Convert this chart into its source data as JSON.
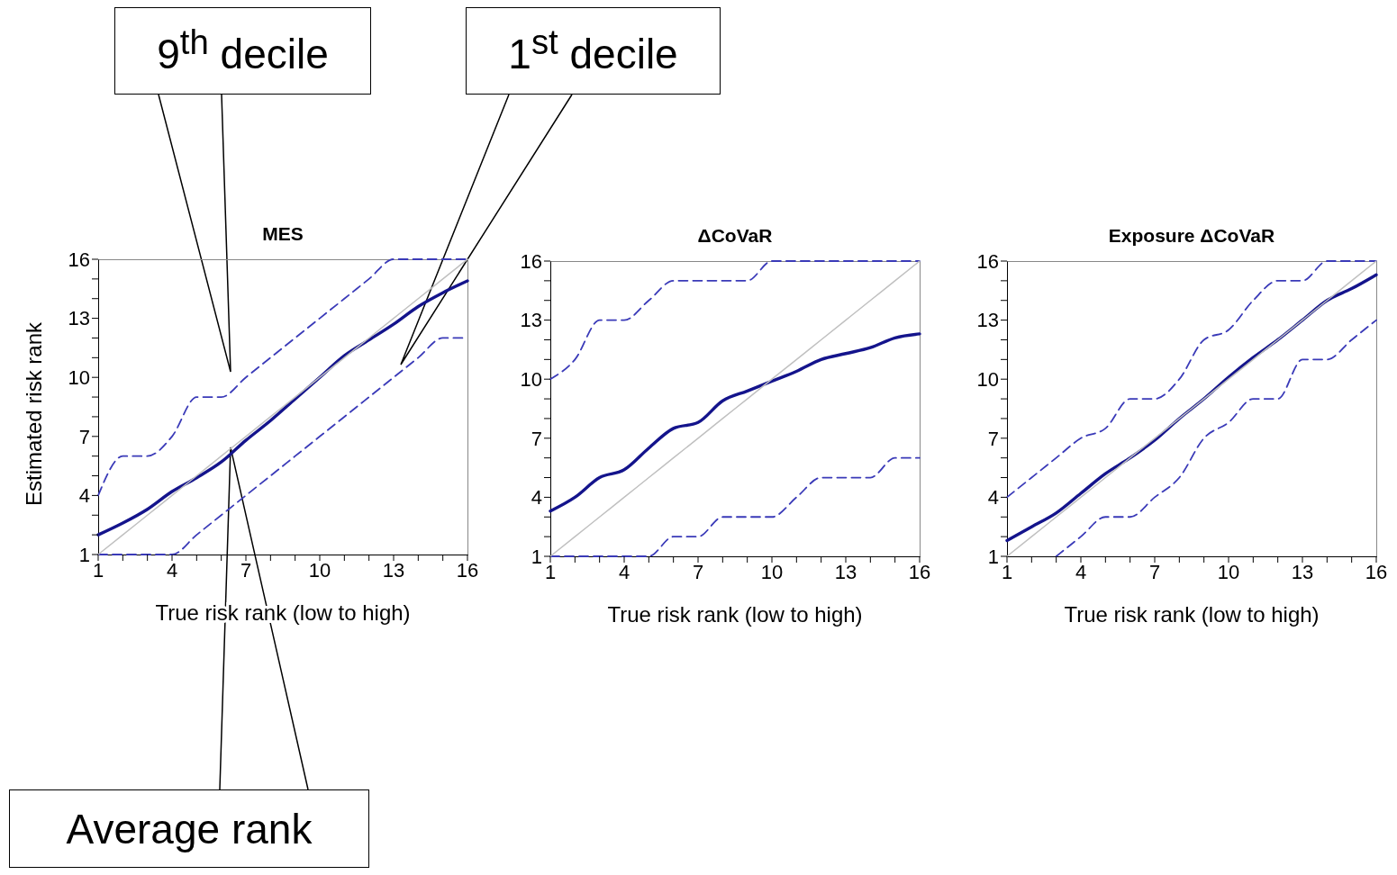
{
  "chart_data": [
    {
      "type": "line",
      "title": "MES",
      "xlabel": "True risk rank (low to high)",
      "ylabel": "Estimated risk rank",
      "x": [
        1,
        2,
        3,
        4,
        5,
        6,
        7,
        8,
        9,
        10,
        11,
        12,
        13,
        14,
        15,
        16
      ],
      "series": [
        {
          "color": "#3a3ab8",
          "line_style": "dashed",
          "values": [
            4,
            6,
            6,
            7,
            9,
            9,
            10,
            11,
            12,
            13,
            14,
            15,
            16,
            16,
            16,
            16
          ]
        },
        {
          "color": "#14148c",
          "line_style": "solid",
          "values": [
            2,
            2.6,
            3.3,
            4.2,
            4.9,
            5.7,
            6.8,
            7.8,
            8.9,
            10,
            11.1,
            11.9,
            12.7,
            13.6,
            14.3,
            14.9
          ]
        },
        {
          "color": "#3a3ab8",
          "line_style": "dashed",
          "values": [
            1,
            1,
            1,
            1,
            2,
            3,
            4,
            5,
            6,
            7,
            8,
            9,
            10,
            11,
            12,
            12
          ]
        },
        {
          "color": "#c0c0c0",
          "line_style": "solid",
          "values": [
            1,
            2,
            3,
            4,
            5,
            6,
            7,
            8,
            9,
            10,
            11,
            12,
            13,
            14,
            15,
            16
          ]
        }
      ],
      "xlim": [
        1,
        16
      ],
      "ylim": [
        1,
        16
      ],
      "xticks": [
        1,
        {
          "value": 2,
          "label": null
        },
        {
          "value": 3,
          "label": null
        },
        4,
        {
          "value": 5,
          "label": null
        },
        {
          "value": 6,
          "label": null
        },
        7,
        {
          "value": 8,
          "label": null
        },
        {
          "value": 9,
          "label": null
        },
        10,
        {
          "value": 11,
          "label": null
        },
        {
          "value": 12,
          "label": null
        },
        13,
        {
          "value": 14,
          "label": null
        },
        {
          "value": 15,
          "label": null
        },
        16
      ],
      "yticks": [
        1,
        {
          "value": 2,
          "label": null
        },
        {
          "value": 3,
          "label": null
        },
        4,
        {
          "value": 5,
          "label": null
        },
        {
          "value": 6,
          "label": null
        },
        7,
        {
          "value": 8,
          "label": null
        },
        {
          "value": 9,
          "label": null
        },
        10,
        {
          "value": 11,
          "label": null
        },
        {
          "value": 12,
          "label": null
        },
        13,
        {
          "value": 14,
          "label": null
        },
        {
          "value": 15,
          "label": null
        },
        16
      ],
      "annotations": [
        "9$^{th}$ decile",
        "1$^{st}$ decile",
        "Average rank"
      ]
    },
    {
      "type": "line",
      "title": "ΔCoVaR",
      "xlabel": "True risk rank (low to high)",
      "x": [
        1,
        2,
        3,
        4,
        5,
        6,
        7,
        8,
        9,
        10,
        11,
        12,
        13,
        14,
        15,
        16
      ],
      "series": [
        {
          "color": "#3a3ab8",
          "line_style": "dashed",
          "values": [
            10,
            11,
            13,
            13,
            14,
            15,
            15,
            15,
            15,
            16,
            16,
            16,
            16,
            16,
            16,
            16
          ]
        },
        {
          "color": "#14148c",
          "line_style": "solid",
          "values": [
            3.3,
            4,
            5,
            5.4,
            6.5,
            7.5,
            7.8,
            8.9,
            9.4,
            9.9,
            10.4,
            11,
            11.3,
            11.6,
            12.1,
            12.3
          ]
        },
        {
          "color": "#3a3ab8",
          "line_style": "dashed",
          "values": [
            1,
            1,
            1,
            1,
            1,
            2,
            2,
            3,
            3,
            3,
            4,
            5,
            5,
            5,
            6,
            6
          ]
        },
        {
          "color": "#c0c0c0",
          "line_style": "solid",
          "values": [
            1,
            2,
            3,
            4,
            5,
            6,
            7,
            8,
            9,
            10,
            11,
            12,
            13,
            14,
            15,
            16
          ]
        }
      ],
      "xlim": [
        1,
        16
      ],
      "ylim": [
        1,
        16
      ],
      "xticks": [
        1,
        {
          "value": 2,
          "label": null
        },
        {
          "value": 3,
          "label": null
        },
        4,
        {
          "value": 5,
          "label": null
        },
        {
          "value": 6,
          "label": null
        },
        7,
        {
          "value": 8,
          "label": null
        },
        {
          "value": 9,
          "label": null
        },
        10,
        {
          "value": 11,
          "label": null
        },
        {
          "value": 12,
          "label": null
        },
        13,
        {
          "value": 14,
          "label": null
        },
        {
          "value": 15,
          "label": null
        },
        16
      ],
      "yticks": [
        1,
        {
          "value": 2,
          "label": null
        },
        {
          "value": 3,
          "label": null
        },
        4,
        {
          "value": 5,
          "label": null
        },
        {
          "value": 6,
          "label": null
        },
        7,
        {
          "value": 8,
          "label": null
        },
        {
          "value": 9,
          "label": null
        },
        10,
        {
          "value": 11,
          "label": null
        },
        {
          "value": 12,
          "label": null
        },
        13,
        {
          "value": 14,
          "label": null
        },
        {
          "value": 15,
          "label": null
        },
        16
      ]
    },
    {
      "type": "line",
      "title": "Exposure ΔCoVaR",
      "xlabel": "True risk rank (low to high)",
      "x": [
        1,
        2,
        3,
        4,
        5,
        6,
        7,
        8,
        9,
        10,
        11,
        12,
        13,
        14,
        15,
        16
      ],
      "series": [
        {
          "color": "#3a3ab8",
          "line_style": "dashed",
          "values": [
            4,
            5,
            6,
            7,
            7.5,
            9,
            9,
            10,
            12,
            12.5,
            14,
            15,
            15,
            16,
            16,
            16
          ]
        },
        {
          "color": "#14148c",
          "line_style": "solid",
          "values": [
            1.8,
            2.5,
            3.2,
            4.2,
            5.2,
            6,
            6.9,
            8,
            9,
            10.1,
            11.1,
            12,
            13,
            14,
            14.6,
            15.3
          ]
        },
        {
          "color": "#3a3ab8",
          "line_style": "dashed",
          "values": [
            null,
            null,
            1,
            2,
            3,
            3,
            4,
            5,
            7,
            7.8,
            9,
            9,
            11,
            11,
            12,
            13
          ]
        },
        {
          "color": "#c0c0c0",
          "line_style": "solid",
          "values": [
            1,
            2,
            3,
            4,
            5,
            6,
            7,
            8,
            9,
            10,
            11,
            12,
            13,
            14,
            15,
            16
          ]
        }
      ],
      "xlim": [
        1,
        16
      ],
      "ylim": [
        1,
        16
      ],
      "xticks": [
        1,
        {
          "value": 2,
          "label": null
        },
        {
          "value": 3,
          "label": null
        },
        4,
        {
          "value": 5,
          "label": null
        },
        {
          "value": 6,
          "label": null
        },
        7,
        {
          "value": 8,
          "label": null
        },
        {
          "value": 9,
          "label": null
        },
        10,
        {
          "value": 11,
          "label": null
        },
        {
          "value": 12,
          "label": null
        },
        13,
        {
          "value": 14,
          "label": null
        },
        {
          "value": 15,
          "label": null
        },
        16
      ],
      "yticks": [
        1,
        {
          "value": 2,
          "label": null
        },
        {
          "value": 3,
          "label": null
        },
        4,
        {
          "value": 5,
          "label": null
        },
        {
          "value": 6,
          "label": null
        },
        7,
        {
          "value": 8,
          "label": null
        },
        {
          "value": 9,
          "label": null
        },
        10,
        {
          "value": 11,
          "label": null
        },
        {
          "value": 12,
          "label": null
        },
        13,
        {
          "value": 14,
          "label": null
        },
        {
          "value": 15,
          "label": null
        },
        16
      ]
    }
  ]
}
